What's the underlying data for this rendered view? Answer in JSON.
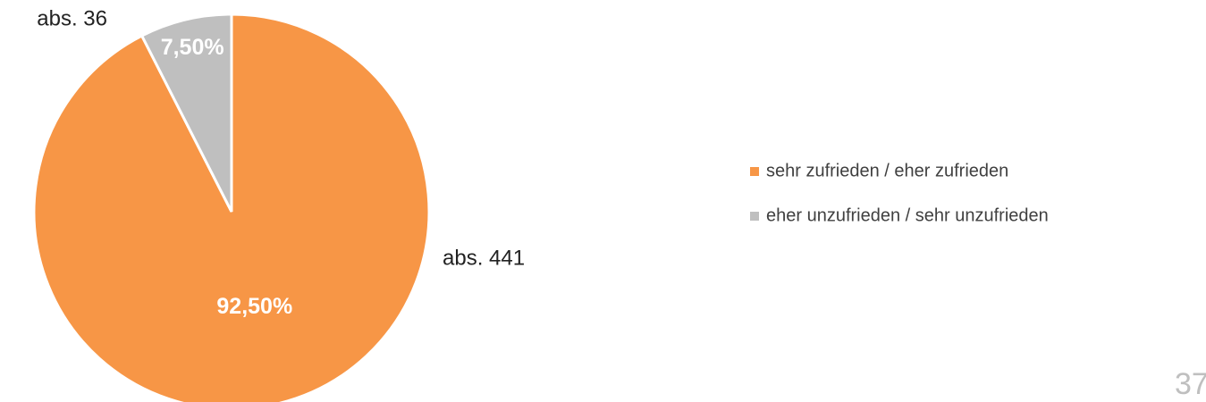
{
  "chart_data": {
    "type": "pie",
    "categories": [
      "sehr zufrieden / eher zufrieden",
      "eher unzufrieden / sehr unzufrieden"
    ],
    "values": [
      92.5,
      7.5
    ],
    "value_labels": [
      "92,50%",
      "7,50%"
    ],
    "colors": [
      "#f79646",
      "#bfbfbf"
    ],
    "annotations": [
      "abs. 441",
      "abs. 36"
    ],
    "legend": "right"
  },
  "page_number": "37"
}
